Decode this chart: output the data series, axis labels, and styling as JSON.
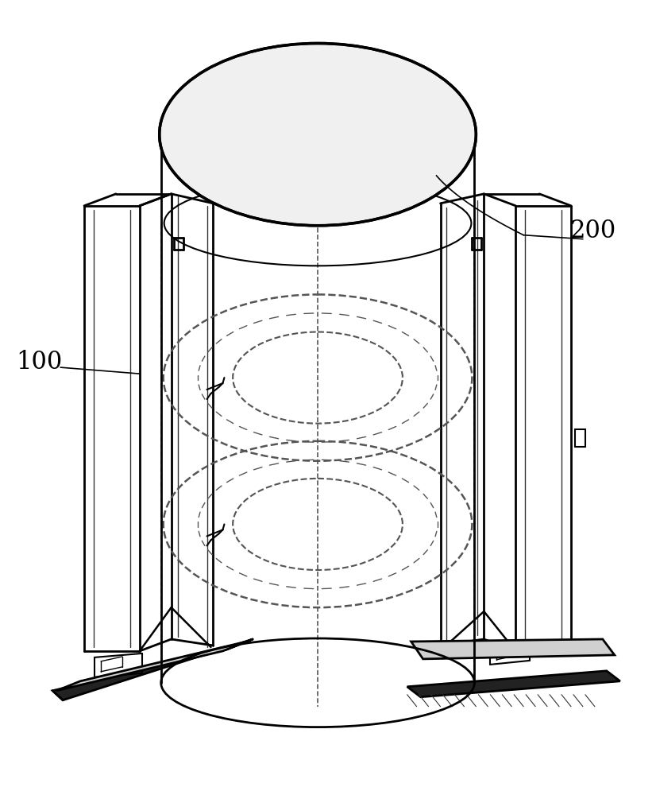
{
  "bg_color": "#ffffff",
  "label_100": "100",
  "label_200": "200",
  "fig_width": 8.26,
  "fig_height": 10.0
}
